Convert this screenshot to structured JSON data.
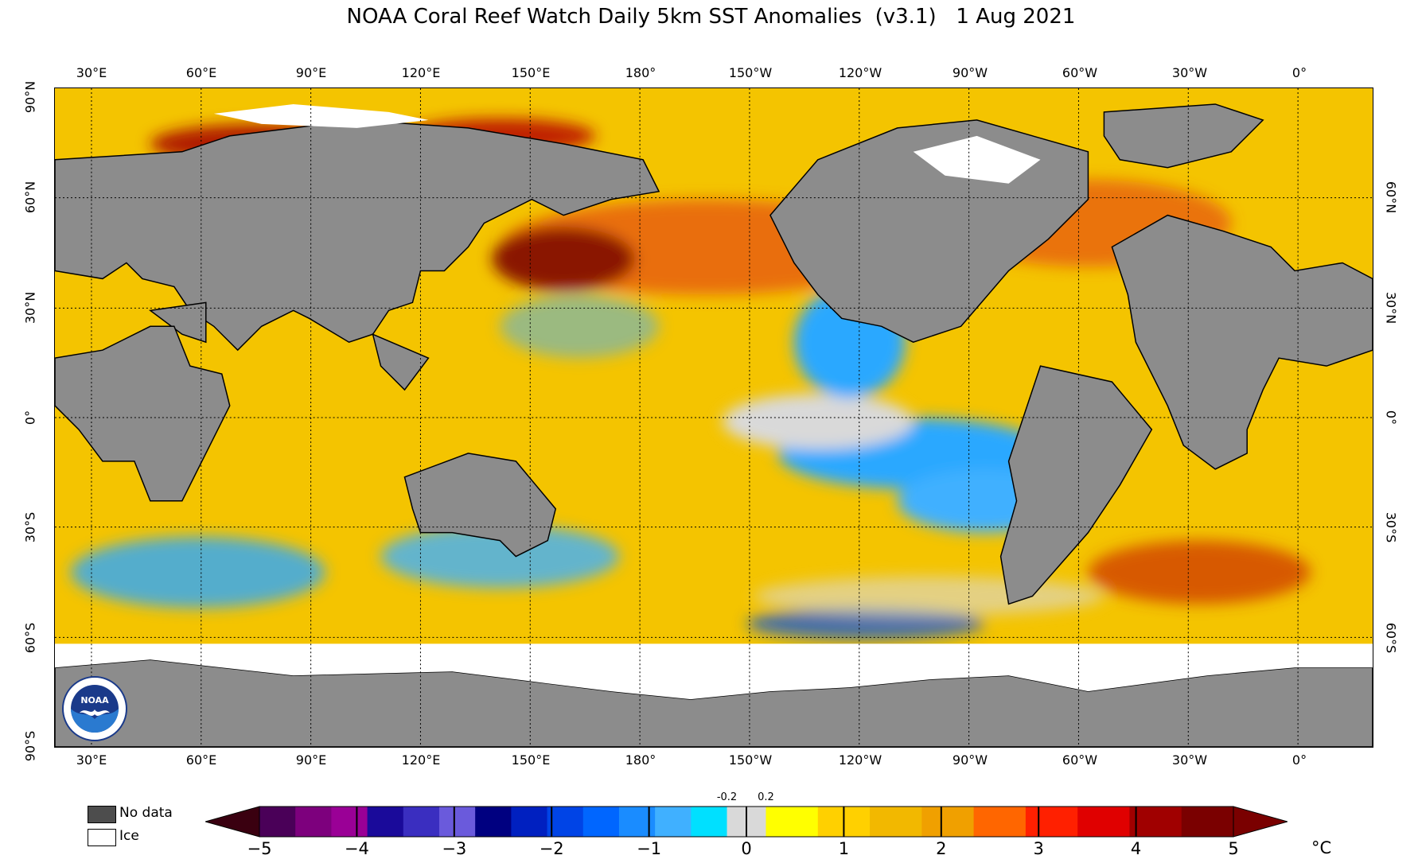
{
  "title": "NOAA Coral Reef Watch Daily 5km SST Anomalies  (v3.1)   1 Aug 2021",
  "longitude_labels": [
    "30°E",
    "60°E",
    "90°E",
    "120°E",
    "150°E",
    "180°",
    "150°W",
    "120°W",
    "90°W",
    "60°W",
    "30°W",
    "0°"
  ],
  "latitude_labels_left": [
    "90°N",
    "60°N",
    "30°N",
    "0°",
    "30°S",
    "60°S",
    "90°S"
  ],
  "latitude_labels_right": [
    "60°N",
    "30°N",
    "0°",
    "30°S",
    "60°S"
  ],
  "legend": {
    "no_data": "No data",
    "ice": "Ice",
    "no_data_color": "#4d4d4d",
    "ice_color": "#ffffff"
  },
  "colorbar": {
    "ticks": [
      "−5",
      "−4",
      "−3",
      "−2",
      "−1",
      "0",
      "1",
      "2",
      "3",
      "4",
      "5"
    ],
    "neutral_neg": "-0.2",
    "neutral_pos": "0.2",
    "unit": "°C",
    "colors": [
      "#3a0010",
      "#4a0058",
      "#7d007d",
      "#9a0096",
      "#1a0a9a",
      "#3a2ec0",
      "#6a5adc",
      "#000080",
      "#0020c0",
      "#0044e6",
      "#0066ff",
      "#1a8cff",
      "#40b0ff",
      "#00e0ff",
      "#d9d9d9",
      "#ffff00",
      "#ffd000",
      "#f2b800",
      "#f0a000",
      "#ff6600",
      "#ff2000",
      "#e00000",
      "#a00000",
      "#7a0000"
    ]
  },
  "map": {
    "land_color": "#8c8c8c",
    "ice_color": "#ffffff",
    "ocean_base_color": "#f4c400",
    "cold_anomaly_color": "#1aa3ff",
    "warm_anomaly_color": "#d93a00",
    "logo_text": "NOAA"
  }
}
